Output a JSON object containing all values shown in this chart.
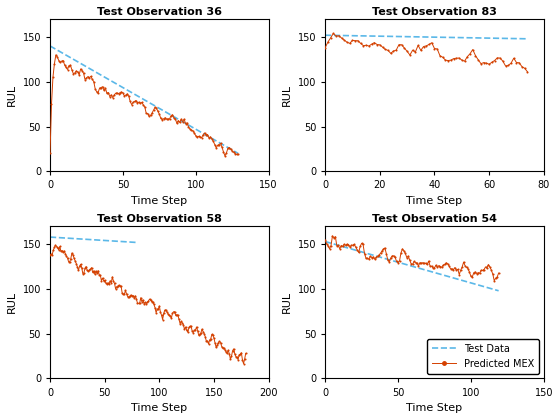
{
  "subplots": [
    {
      "title": "Test Observation 36",
      "xlim": [
        0,
        150
      ],
      "ylim": [
        0,
        170
      ],
      "xticks": [
        0,
        50,
        100,
        150
      ],
      "yticks": [
        0,
        50,
        100,
        150
      ],
      "n_steps": 130,
      "pred_start": 125,
      "pred_end": 20,
      "noise_scale": 6,
      "dashed_start": 140,
      "dashed_end": 20,
      "has_initial_drop": true,
      "initial_drop_vals": [
        20,
        75,
        105,
        120,
        130
      ]
    },
    {
      "title": "Test Observation 83",
      "xlim": [
        0,
        80
      ],
      "ylim": [
        0,
        170
      ],
      "xticks": [
        0,
        20,
        40,
        60,
        80
      ],
      "yticks": [
        0,
        50,
        100,
        150
      ],
      "n_steps": 75,
      "pred_start": 148,
      "pred_end": 118,
      "noise_scale": 7,
      "dashed_start": 152,
      "dashed_end": 148,
      "has_initial_drop": false,
      "initial_drop_vals": []
    },
    {
      "title": "Test Observation 58",
      "xlim": [
        0,
        200
      ],
      "ylim": [
        0,
        170
      ],
      "xticks": [
        0,
        50,
        100,
        150,
        200
      ],
      "yticks": [
        0,
        50,
        100,
        150
      ],
      "n_steps": 180,
      "pred_start": 148,
      "pred_end": 20,
      "noise_scale": 7,
      "dashed_start": 158,
      "dashed_end": 152,
      "dashed_n": 80,
      "has_initial_drop": false,
      "initial_drop_vals": []
    },
    {
      "title": "Test Observation 54",
      "xlim": [
        0,
        150
      ],
      "ylim": [
        0,
        170
      ],
      "xticks": [
        0,
        50,
        100,
        150
      ],
      "yticks": [
        0,
        50,
        100,
        150
      ],
      "n_steps": 120,
      "pred_start": 150,
      "pred_end": 115,
      "noise_scale": 7,
      "dashed_start": 153,
      "dashed_end": 98,
      "has_initial_drop": false,
      "initial_drop_vals": []
    }
  ],
  "line_color": "#D44000",
  "dashed_color": "#5BB8E8",
  "marker": "o",
  "marker_size": 1.5,
  "line_width": 0.7,
  "xlabel": "Time Step",
  "ylabel": "RUL"
}
